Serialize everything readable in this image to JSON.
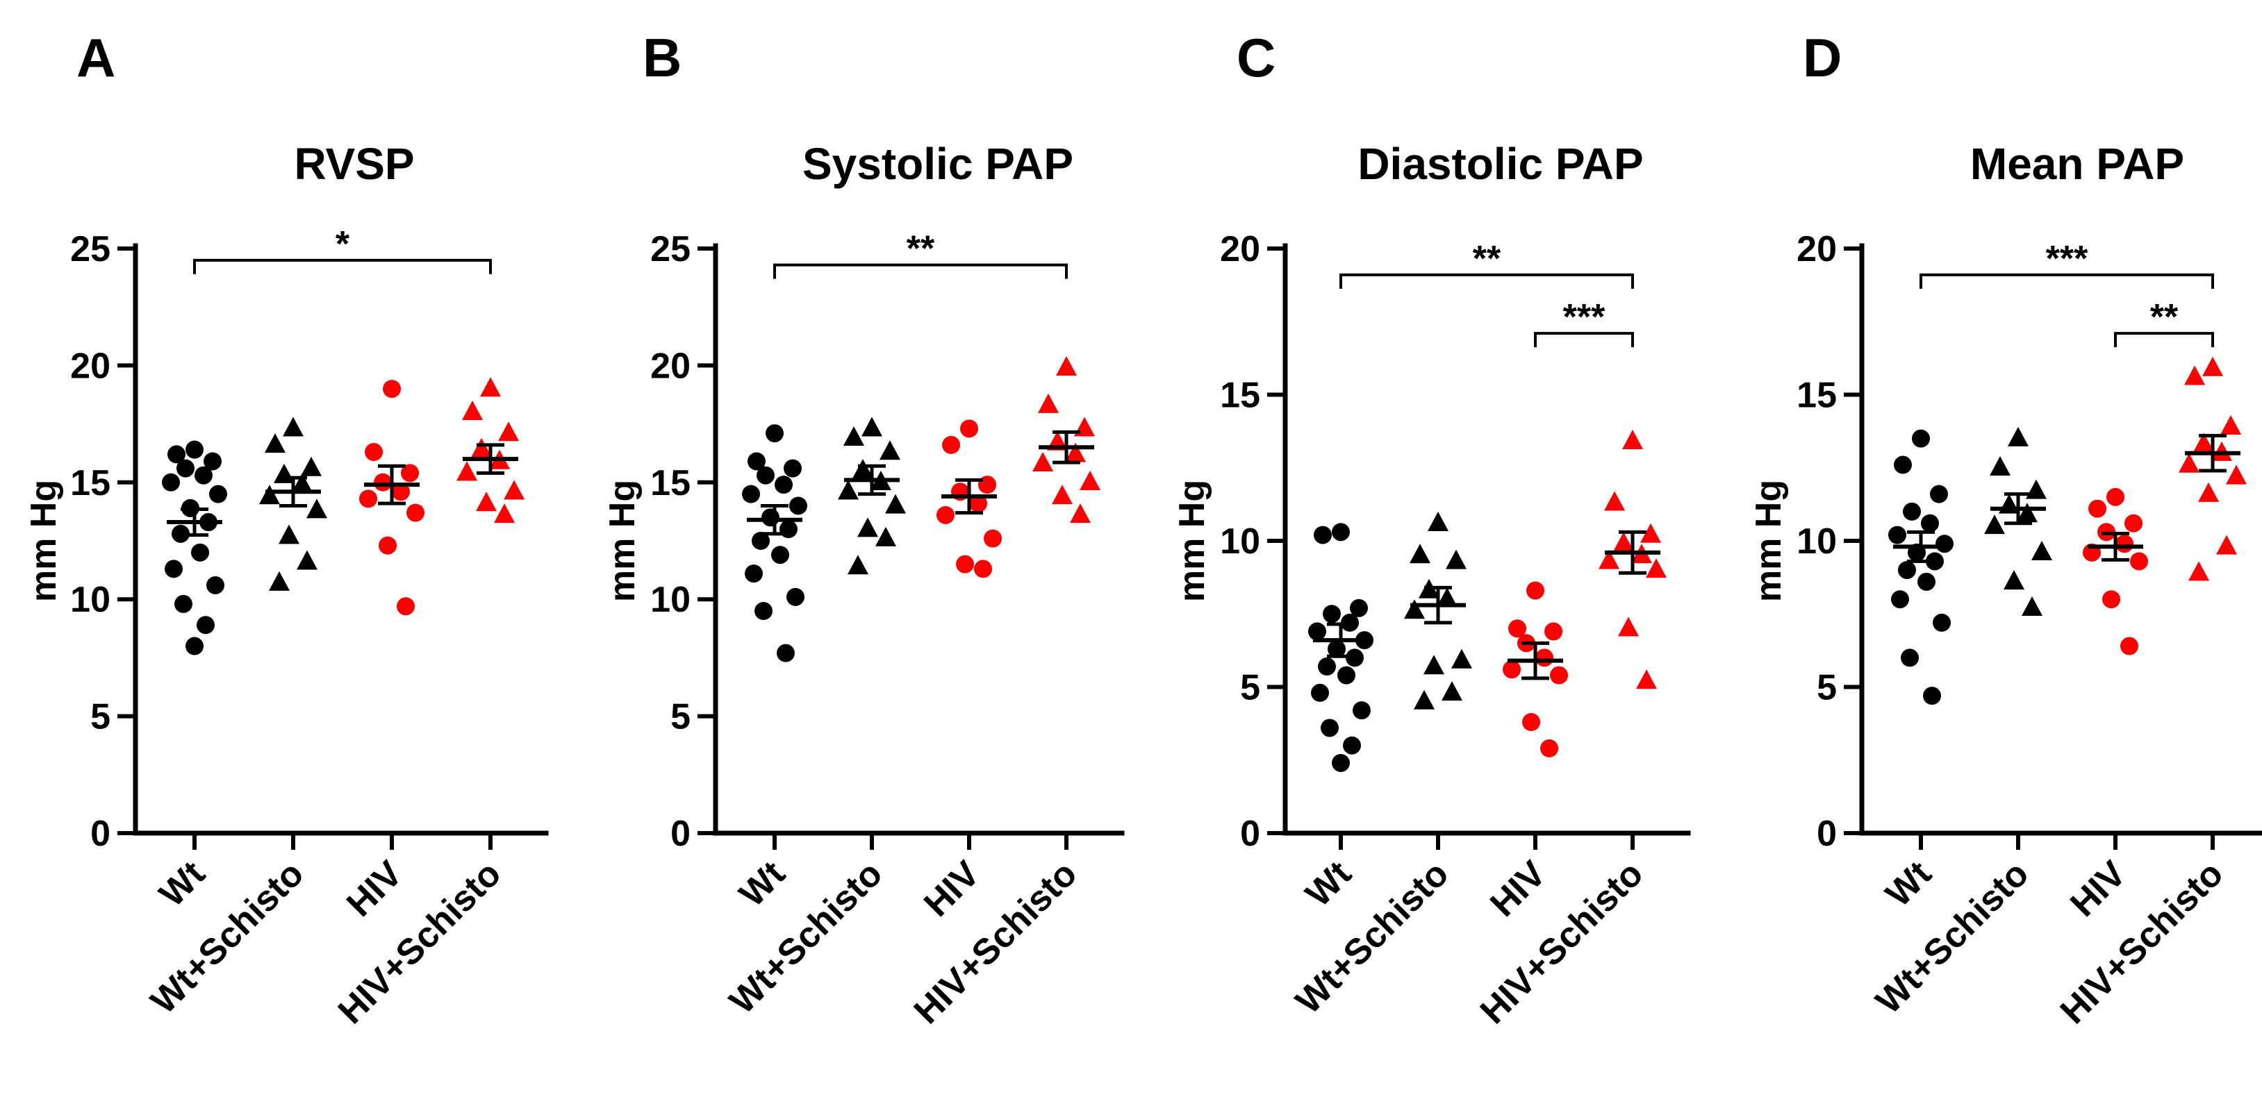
{
  "chart_data": [
    {
      "type": "scatter",
      "panel": "A",
      "title": "RVSP",
      "ylabel": "mm Hg",
      "ylim": [
        0,
        25
      ],
      "yticks": [
        0,
        5,
        10,
        15,
        20,
        25
      ],
      "categories": [
        "Wt",
        "Wt+Schisto",
        "HIV",
        "HIV+Schisto"
      ],
      "series": [
        {
          "category": "Wt",
          "color": "#000000",
          "marker": "circle",
          "values": [
            16.4,
            16.2,
            15.9,
            15.6,
            15.3,
            15.0,
            14.5,
            13.9,
            13.3,
            12.8,
            12.0,
            11.3,
            10.6,
            9.8,
            8.9,
            8.0
          ],
          "mean": 13.3,
          "sem": 0.55
        },
        {
          "category": "Wt+Schisto",
          "color": "#000000",
          "marker": "triangle",
          "values": [
            17.3,
            16.6,
            15.6,
            15.3,
            14.9,
            14.4,
            13.8,
            12.7,
            11.6,
            10.7
          ],
          "mean": 14.6,
          "sem": 0.6
        },
        {
          "category": "HIV",
          "color": "#ff0000",
          "marker": "circle",
          "values": [
            19.0,
            16.3,
            15.4,
            15.0,
            14.6,
            14.3,
            13.7,
            12.3,
            9.7
          ],
          "mean": 14.9,
          "sem": 0.8
        },
        {
          "category": "HIV+Schisto",
          "color": "#ff0000",
          "marker": "triangle",
          "values": [
            19.0,
            18.0,
            17.1,
            16.4,
            15.9,
            15.4,
            14.6,
            14.1,
            13.6
          ],
          "mean": 16.0,
          "sem": 0.6
        }
      ],
      "significance": [
        {
          "from": "Wt",
          "to": "HIV+Schisto",
          "label": "*",
          "y": 24.5
        }
      ]
    },
    {
      "type": "scatter",
      "panel": "B",
      "title": "Systolic PAP",
      "ylabel": "mm Hg",
      "ylim": [
        0,
        25
      ],
      "yticks": [
        0,
        5,
        10,
        15,
        20,
        25
      ],
      "categories": [
        "Wt",
        "Wt+Schisto",
        "HIV",
        "HIV+Schisto"
      ],
      "series": [
        {
          "category": "Wt",
          "color": "#000000",
          "marker": "circle",
          "values": [
            17.1,
            15.9,
            15.6,
            15.3,
            14.9,
            14.5,
            14.0,
            13.5,
            13.0,
            12.5,
            11.9,
            11.1,
            10.1,
            9.5,
            7.7
          ],
          "mean": 13.4,
          "sem": 0.6
        },
        {
          "category": "Wt+Schisto",
          "color": "#000000",
          "marker": "triangle",
          "values": [
            17.3,
            16.9,
            16.3,
            15.5,
            15.0,
            14.6,
            14.0,
            13.0,
            12.6,
            11.4
          ],
          "mean": 15.1,
          "sem": 0.6
        },
        {
          "category": "HIV",
          "color": "#ff0000",
          "marker": "circle",
          "values": [
            17.3,
            16.6,
            14.9,
            14.6,
            14.1,
            13.6,
            12.6,
            11.5,
            11.3
          ],
          "mean": 14.4,
          "sem": 0.7
        },
        {
          "category": "HIV+Schisto",
          "color": "#ff0000",
          "marker": "triangle",
          "values": [
            19.9,
            18.3,
            17.3,
            16.7,
            16.2,
            15.8,
            15.0,
            14.4,
            13.6
          ],
          "mean": 16.5,
          "sem": 0.65
        }
      ],
      "significance": [
        {
          "from": "Wt",
          "to": "HIV+Schisto",
          "label": "**",
          "y": 24.3
        }
      ]
    },
    {
      "type": "scatter",
      "panel": "C",
      "title": "Diastolic PAP",
      "ylabel": "mm Hg",
      "ylim": [
        0,
        20
      ],
      "yticks": [
        0,
        5,
        10,
        15,
        20
      ],
      "categories": [
        "Wt",
        "Wt+Schisto",
        "HIV",
        "HIV+Schisto"
      ],
      "series": [
        {
          "category": "Wt",
          "color": "#000000",
          "marker": "circle",
          "values": [
            10.3,
            10.2,
            7.7,
            7.5,
            7.2,
            6.9,
            6.6,
            6.3,
            6.0,
            5.7,
            5.4,
            4.8,
            4.2,
            3.6,
            3.0,
            2.4
          ],
          "mean": 6.6,
          "sem": 0.55
        },
        {
          "category": "Wt+Schisto",
          "color": "#000000",
          "marker": "triangle",
          "values": [
            10.6,
            9.5,
            9.3,
            8.3,
            8.0,
            7.6,
            5.9,
            5.7,
            4.8,
            4.5
          ],
          "mean": 7.8,
          "sem": 0.6
        },
        {
          "category": "HIV",
          "color": "#ff0000",
          "marker": "circle",
          "values": [
            8.3,
            7.0,
            6.9,
            6.5,
            6.0,
            5.6,
            5.4,
            3.8,
            2.9
          ],
          "mean": 5.9,
          "sem": 0.6
        },
        {
          "category": "HIV+Schisto",
          "color": "#ff0000",
          "marker": "triangle",
          "values": [
            13.4,
            11.3,
            10.2,
            9.9,
            9.5,
            9.3,
            9.0,
            7.0,
            5.2
          ],
          "mean": 9.6,
          "sem": 0.7
        }
      ],
      "significance": [
        {
          "from": "Wt",
          "to": "HIV+Schisto",
          "label": "**",
          "y": 19.1
        },
        {
          "from": "HIV",
          "to": "HIV+Schisto",
          "label": "***",
          "y": 17.1
        }
      ]
    },
    {
      "type": "scatter",
      "panel": "D",
      "title": "Mean PAP",
      "ylabel": "mm Hg",
      "ylim": [
        0,
        20
      ],
      "yticks": [
        0,
        5,
        10,
        15,
        20
      ],
      "categories": [
        "Wt",
        "Wt+Schisto",
        "HIV",
        "HIV+Schisto"
      ],
      "series": [
        {
          "category": "Wt",
          "color": "#000000",
          "marker": "circle",
          "values": [
            13.5,
            12.6,
            11.6,
            11.0,
            10.6,
            10.2,
            9.9,
            9.6,
            9.3,
            9.0,
            8.6,
            8.0,
            7.2,
            6.0,
            4.7
          ],
          "mean": 9.8,
          "sem": 0.5
        },
        {
          "category": "Wt+Schisto",
          "color": "#000000",
          "marker": "triangle",
          "values": [
            13.5,
            12.5,
            11.7,
            11.2,
            10.9,
            10.5,
            9.6,
            8.6,
            7.7
          ],
          "mean": 11.1,
          "sem": 0.5
        },
        {
          "category": "HIV",
          "color": "#ff0000",
          "marker": "circle",
          "values": [
            11.5,
            11.1,
            10.6,
            10.3,
            9.9,
            9.6,
            9.3,
            8.0,
            6.4
          ],
          "mean": 9.8,
          "sem": 0.45
        },
        {
          "category": "HIV+Schisto",
          "color": "#ff0000",
          "marker": "triangle",
          "values": [
            15.9,
            15.6,
            13.9,
            13.3,
            13.0,
            12.6,
            12.2,
            11.6,
            9.8,
            8.9
          ],
          "mean": 13.0,
          "sem": 0.6
        }
      ],
      "significance": [
        {
          "from": "Wt",
          "to": "HIV+Schisto",
          "label": "***",
          "y": 19.1
        },
        {
          "from": "HIV",
          "to": "HIV+Schisto",
          "label": "**",
          "y": 17.1
        }
      ]
    }
  ]
}
